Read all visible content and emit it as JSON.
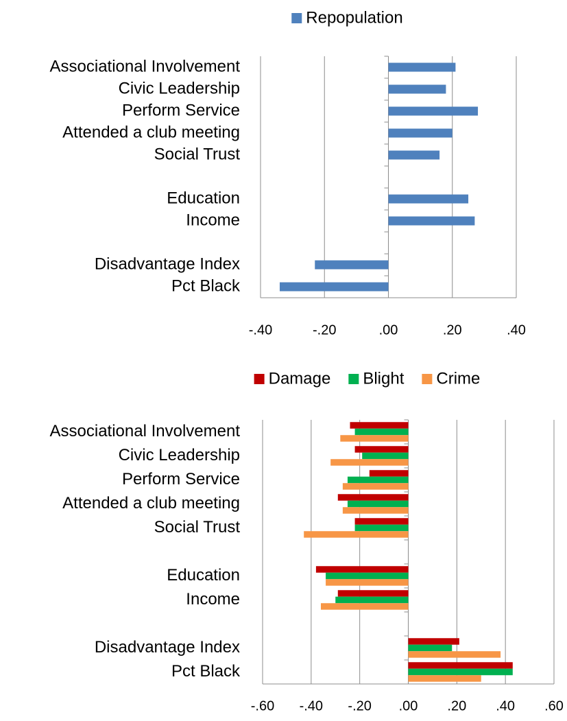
{
  "chart_data": [
    {
      "type": "barh",
      "categories": [
        "Associational Involvement",
        "Civic Leadership",
        "Perform Service",
        "Attended a club meeting",
        "Social Trust",
        null,
        "Education",
        "Income",
        null,
        "Disadvantage Index",
        "Pct Black"
      ],
      "series": [
        {
          "name": "Repopulation",
          "color": "#4f81bd",
          "values": [
            0.21,
            0.18,
            0.28,
            0.2,
            0.16,
            null,
            0.25,
            0.27,
            null,
            -0.23,
            -0.34
          ]
        }
      ],
      "xlim": [
        -0.4,
        0.4
      ],
      "xticks": [
        {
          "value": -0.4,
          "label": "-.40"
        },
        {
          "value": -0.2,
          "label": "-.20"
        },
        {
          "value": 0,
          "label": ".00"
        },
        {
          "value": 0.2,
          "label": ".20"
        },
        {
          "value": 0.4,
          "label": ".40"
        }
      ],
      "grid": true,
      "legend": "top"
    },
    {
      "type": "barh",
      "categories": [
        "Associational Involvement",
        "Civic Leadership",
        "Perform Service",
        "Attended a club meeting",
        "Social Trust",
        null,
        "Education",
        "Income",
        null,
        "Disadvantage Index",
        "Pct Black"
      ],
      "series": [
        {
          "name": "Damage",
          "color": "#c00000",
          "values": [
            -0.24,
            -0.22,
            -0.16,
            -0.29,
            -0.22,
            null,
            -0.38,
            -0.29,
            null,
            0.21,
            0.43
          ]
        },
        {
          "name": "Blight",
          "color": "#00b050",
          "values": [
            -0.22,
            -0.19,
            -0.25,
            -0.25,
            -0.22,
            null,
            -0.34,
            -0.3,
            null,
            0.18,
            0.43
          ]
        },
        {
          "name": "Crime",
          "color": "#f79646",
          "values": [
            -0.28,
            -0.32,
            -0.27,
            -0.27,
            -0.43,
            null,
            -0.34,
            -0.36,
            null,
            0.38,
            0.3
          ]
        }
      ],
      "xlim": [
        -0.6,
        0.6
      ],
      "xticks": [
        {
          "value": -0.6,
          "label": "-.60"
        },
        {
          "value": -0.4,
          "label": "-.40"
        },
        {
          "value": -0.2,
          "label": "-.20"
        },
        {
          "value": 0,
          "label": ".00"
        },
        {
          "value": 0.2,
          "label": ".20"
        },
        {
          "value": 0.4,
          "label": ".40"
        },
        {
          "value": 0.6,
          "label": ".60"
        }
      ],
      "grid": true,
      "legend": "top"
    }
  ]
}
